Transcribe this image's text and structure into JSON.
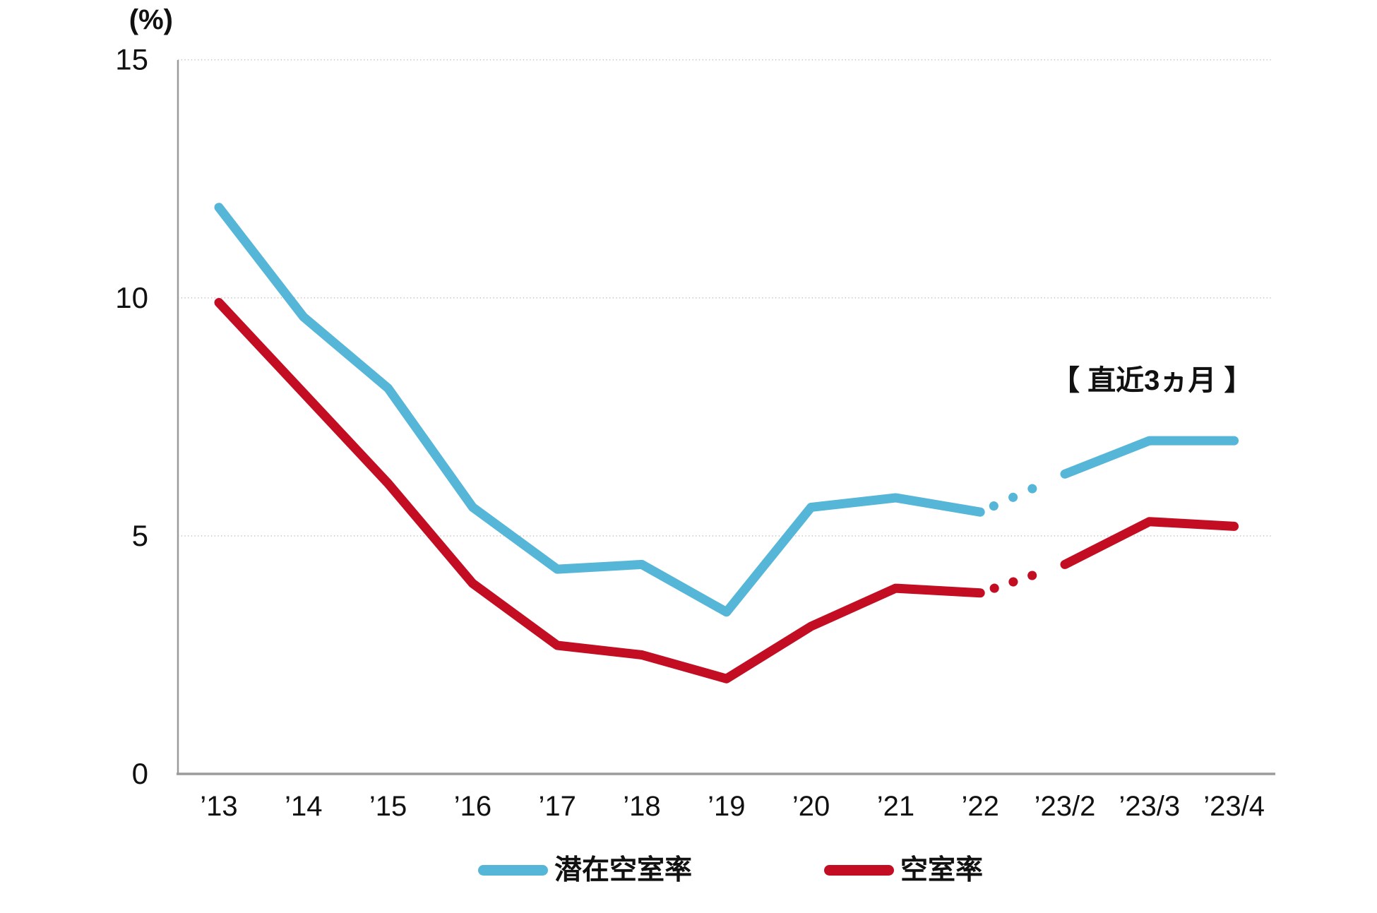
{
  "chart": {
    "unit_label": "(%)",
    "annotation": "【 直近3ヵ月 】",
    "y_ticks": [
      15,
      10,
      5,
      0
    ]
  },
  "legend": {
    "items": [
      {
        "label": "潜在空室率",
        "color": "#56b6d8"
      },
      {
        "label": "空室率",
        "color": "#c30d23"
      }
    ]
  },
  "chart_data": {
    "type": "line",
    "title": "",
    "ylabel": "(%)",
    "ylim": [
      0,
      15
    ],
    "gridline_values": [
      5,
      10,
      15
    ],
    "grid": "horizontal-dotted",
    "legend_position": "bottom",
    "annotation": "【 直近3ヵ月 】",
    "categories": [
      "’13",
      "’14",
      "’15",
      "’16",
      "’17",
      "’18",
      "’19",
      "’20",
      "’21",
      "’22",
      "’23/2",
      "’23/3",
      "’23/4"
    ],
    "series": [
      {
        "name": "潜在空室率",
        "color": "#56b6d8",
        "values": [
          11.9,
          9.6,
          8.1,
          5.6,
          4.3,
          4.4,
          3.4,
          5.6,
          5.8,
          5.5,
          6.3,
          7.0,
          7.0
        ],
        "dotted_segment": [
          9,
          10
        ]
      },
      {
        "name": "空室率",
        "color": "#c30d23",
        "values": [
          9.9,
          8.0,
          6.1,
          4.0,
          2.7,
          2.5,
          2.0,
          3.1,
          3.9,
          3.8,
          4.4,
          5.3,
          5.2
        ],
        "dotted_segment": [
          9,
          10
        ]
      }
    ]
  }
}
